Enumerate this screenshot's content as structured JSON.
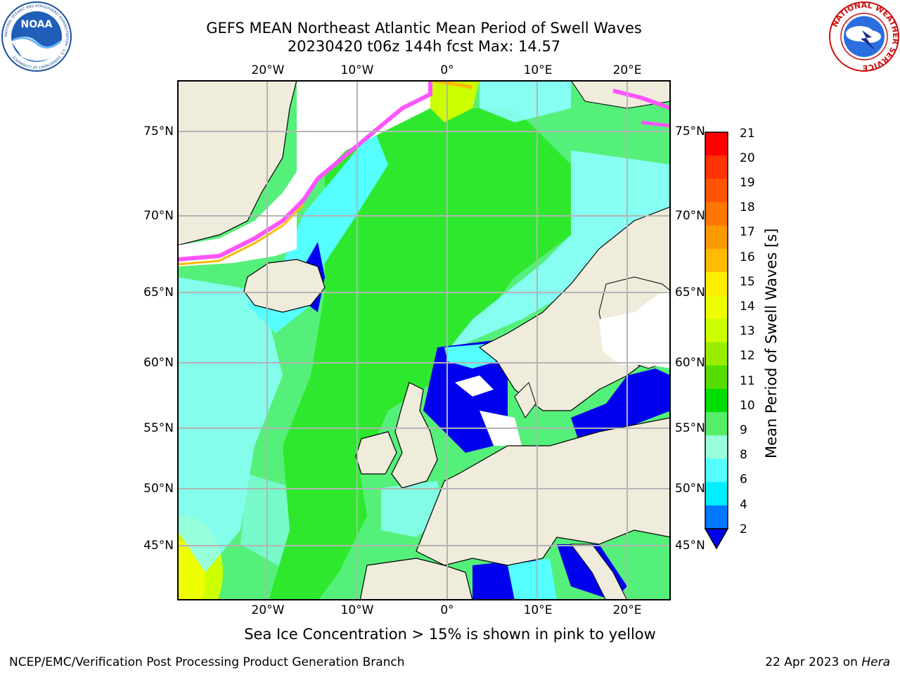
{
  "header": {
    "title_line1": "GEFS MEAN Northeast Atlantic Mean Period of Swell Waves",
    "title_line2": "20230420 t06z 144h fcst   Max: 14.57",
    "left_logo": {
      "name": "noaa-logo",
      "text": "NOAA",
      "ring_text": "NATIONAL OCEANIC AND ATMOSPHERIC ADMINISTRATION · U.S. DEPARTMENT OF COMMERCE"
    },
    "right_logo": {
      "name": "national-weather-service-logo",
      "ring_text": "NATIONAL WEATHER SERVICE"
    }
  },
  "map": {
    "lon_ticks": [
      "20°W",
      "10°W",
      "0°",
      "10°E",
      "20°E"
    ],
    "lat_ticks": [
      "75°N",
      "70°N",
      "65°N",
      "60°N",
      "55°N",
      "50°N",
      "45°N"
    ],
    "lon_range": [
      -30,
      25
    ],
    "lat_range": [
      41,
      78
    ],
    "colors": {
      "land": "#efecdc",
      "ocean_low": "#0000ee",
      "ocean_mid": "#8dffff",
      "ocean_high": "#2ee82e",
      "ice": "#ff55ff",
      "grid": "#b4b4b4"
    }
  },
  "colorbar": {
    "label": "Mean Period of Swell Waves [s]",
    "ticks": [
      "21",
      "20",
      "19",
      "18",
      "17",
      "16",
      "15",
      "14",
      "13",
      "12",
      "11",
      "10",
      "9",
      "8",
      "6",
      "4",
      "2"
    ],
    "colors": [
      "#ff0000",
      "#ff3300",
      "#ff5500",
      "#ff7700",
      "#ff9900",
      "#ffbb00",
      "#ffee00",
      "#eeff00",
      "#ccff00",
      "#99ee00",
      "#55dd00",
      "#00dd00",
      "#55ee66",
      "#99ffdd",
      "#55ffff",
      "#00eeff",
      "#0077ff"
    ],
    "extend_color": "#0000ee"
  },
  "footer": {
    "ice_note": "Sea Ice Concentration > 15% is shown in pink to yellow",
    "left_text": "NCEP/EMC/Verification Post Processing Product Generation Branch",
    "right_text_date": "22 Apr 2023 on ",
    "right_text_host": "Hera"
  }
}
